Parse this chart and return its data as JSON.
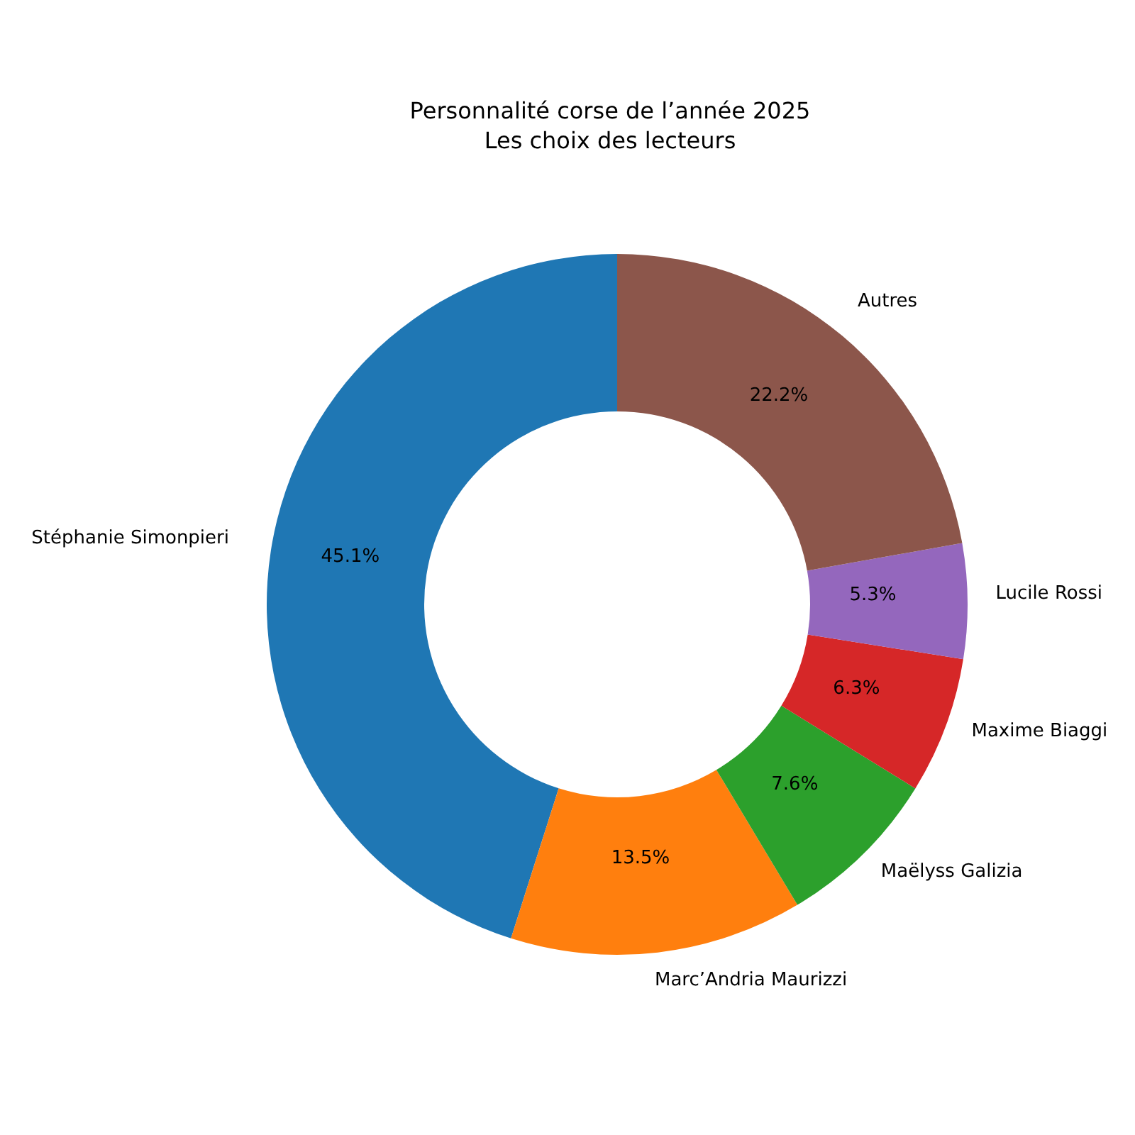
{
  "chart_data": {
    "type": "donut",
    "title": "Personnalité corse de l’année 2025",
    "subtitle": "Les choix des lecteurs",
    "categories": [
      "Stéphanie Simonpieri",
      "Marc’Andria Maurizzi",
      "Maëlyss Galizia",
      "Maxime Biaggi",
      "Lucile Rossi",
      "Autres"
    ],
    "values": [
      45.1,
      13.5,
      7.6,
      6.3,
      5.3,
      22.2
    ],
    "colors": [
      "#1f77b4",
      "#ff7f0e",
      "#2ca02c",
      "#d62728",
      "#9467bd",
      "#8c564b"
    ],
    "value_labels": [
      "45.1%",
      "13.5%",
      "7.6%",
      "6.3%",
      "5.3%",
      "22.2%"
    ]
  }
}
